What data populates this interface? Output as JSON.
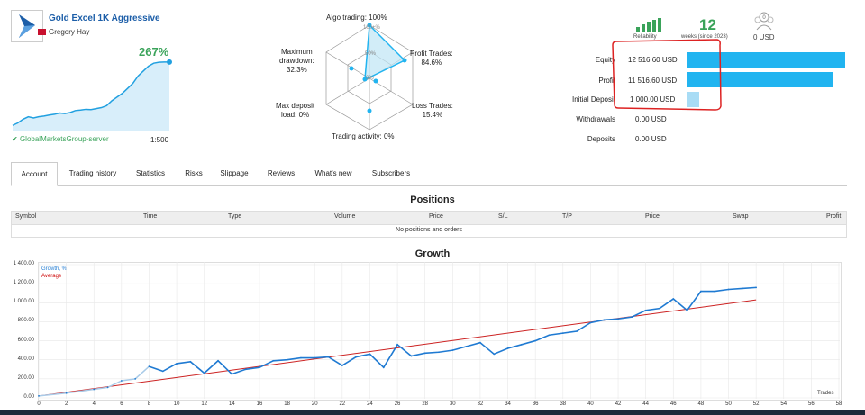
{
  "header": {
    "title": "Gold Excel 1K Aggressive",
    "author": "Gregory Hay",
    "growth_pct": "267%",
    "server": "GlobalMarketsGroup-server",
    "leverage": "1:500"
  },
  "radar": {
    "algo": "Algo trading: 100%",
    "hundred": "100+%",
    "fifty": "50%",
    "zero": "0%",
    "profit_trades": [
      "Profit Trades:",
      "84.6%"
    ],
    "loss_trades": [
      "Loss Trades:",
      "15.4%"
    ],
    "activity": "Trading activity: 0%",
    "max_dep_load": [
      "Max deposit",
      "load: 0%"
    ],
    "max_drawdown": [
      "Maximum",
      "drawdown:",
      "32.3%"
    ]
  },
  "stats": {
    "reliability_label": "Reliability",
    "weeks": "12",
    "weeks_label": "weeks (since 2023)",
    "subscribers_icon_count": "0",
    "subscribers_usd": "0 USD"
  },
  "balance": [
    {
      "label": "Equity",
      "value": "12 516.60 USD",
      "fraction": 1.0
    },
    {
      "label": "Profit",
      "value": "11 516.60 USD",
      "fraction": 0.92
    },
    {
      "label": "Initial Deposit",
      "value": "1 000.00 USD",
      "fraction": 0.08
    },
    {
      "label": "Withdrawals",
      "value": "0.00 USD",
      "fraction": 0
    },
    {
      "label": "Deposits",
      "value": "0.00 USD",
      "fraction": 0
    }
  ],
  "tabs": [
    "Account",
    "Trading history",
    "Statistics",
    "Risks",
    "Slippage",
    "Reviews",
    "What's new",
    "Subscribers"
  ],
  "positions": {
    "title": "Positions",
    "columns": [
      "Symbol",
      "Time",
      "Type",
      "Volume",
      "Price",
      "S/L",
      "T/P",
      "Price",
      "Swap",
      "Profit"
    ],
    "empty": "No positions and orders"
  },
  "growth": {
    "title": "Growth",
    "legend_growth": "Growth, %",
    "legend_average": "Average",
    "x_label": "Trades",
    "accent_growth": "#1f7ad2",
    "accent_average": "#cc2222"
  },
  "chart_data": {
    "type": "line",
    "title": "Growth",
    "xlabel": "Trades",
    "ylabel": "",
    "xlim": [
      0,
      58
    ],
    "ylim": [
      0,
      1400
    ],
    "y_ticks": [
      "0.00",
      "200.00",
      "400.00",
      "600.00",
      "800.00",
      "1 000.00",
      "1 200.00",
      "1 400.00"
    ],
    "x_ticks": [
      0,
      2,
      4,
      6,
      8,
      10,
      12,
      14,
      16,
      18,
      20,
      22,
      24,
      26,
      28,
      30,
      32,
      34,
      36,
      38,
      40,
      42,
      44,
      46,
      48,
      50,
      52,
      54,
      56,
      58
    ],
    "series": [
      {
        "name": "Growth, %",
        "x": [
          0,
          2,
          4,
          5,
          6,
          7,
          8,
          9,
          10,
          11,
          12,
          13,
          14,
          15,
          16,
          17,
          18,
          19,
          20,
          21,
          22,
          23,
          24,
          25,
          26,
          27,
          28,
          29,
          30,
          31,
          32,
          33,
          34,
          35,
          36,
          37,
          38,
          39,
          40,
          41,
          42,
          43,
          44,
          45,
          46,
          47,
          48,
          49,
          50,
          51,
          52
        ],
        "y": [
          20,
          50,
          90,
          110,
          180,
          200,
          330,
          280,
          360,
          380,
          260,
          390,
          250,
          300,
          320,
          390,
          400,
          420,
          420,
          430,
          340,
          430,
          460,
          320,
          560,
          440,
          470,
          480,
          500,
          540,
          580,
          460,
          520,
          560,
          600,
          660,
          680,
          700,
          790,
          820,
          830,
          850,
          920,
          940,
          1040,
          920,
          1120,
          1120,
          1140,
          1150,
          1160
        ]
      },
      {
        "name": "Average",
        "x": [
          0,
          52
        ],
        "y": [
          20,
          1030
        ]
      }
    ]
  },
  "mini_chart": {
    "x": [
      0,
      1,
      2,
      3,
      4,
      5,
      6,
      7,
      8,
      9,
      10,
      11,
      12,
      13,
      14,
      15,
      16,
      17,
      18,
      19,
      20,
      21,
      22,
      23,
      24,
      25,
      26,
      27,
      28,
      29,
      30
    ],
    "y": [
      10,
      20,
      35,
      45,
      40,
      45,
      48,
      52,
      55,
      60,
      58,
      62,
      70,
      72,
      75,
      74,
      78,
      82,
      90,
      110,
      125,
      140,
      160,
      180,
      210,
      230,
      250,
      262,
      266,
      267,
      267
    ]
  }
}
